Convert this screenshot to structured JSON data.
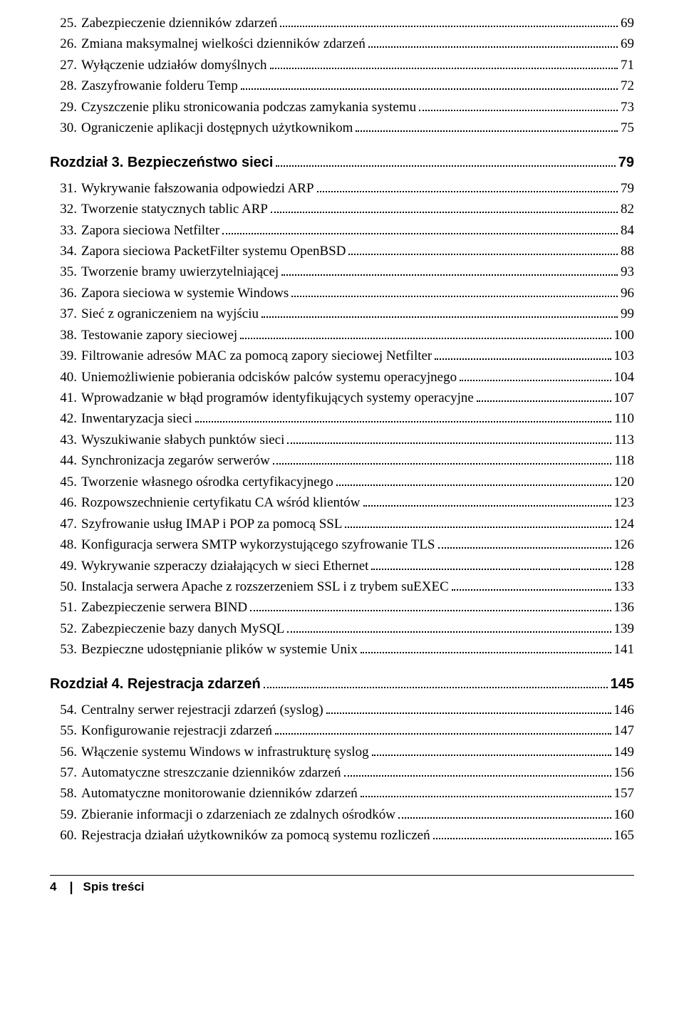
{
  "preItems": [
    {
      "num": "25",
      "title": "Zabezpieczenie dzienników zdarzeń",
      "page": "69"
    },
    {
      "num": "26",
      "title": "Zmiana maksymalnej wielkości dzienników zdarzeń",
      "page": "69"
    },
    {
      "num": "27",
      "title": "Wyłączenie udziałów domyślnych",
      "page": "71"
    },
    {
      "num": "28",
      "title": "Zaszyfrowanie folderu Temp",
      "page": "72"
    },
    {
      "num": "29",
      "title": "Czyszczenie pliku stronicowania podczas zamykania systemu",
      "page": "73"
    },
    {
      "num": "30",
      "title": "Ograniczenie aplikacji dostępnych użytkownikom",
      "page": "75"
    }
  ],
  "chapters": [
    {
      "heading": "Rozdział 3. Bezpieczeństwo sieci",
      "page": "79",
      "items": [
        {
          "num": "31",
          "title": "Wykrywanie fałszowania odpowiedzi ARP",
          "page": "79"
        },
        {
          "num": "32",
          "title": "Tworzenie statycznych tablic ARP",
          "page": "82"
        },
        {
          "num": "33",
          "title": "Zapora sieciowa Netfilter",
          "page": "84"
        },
        {
          "num": "34",
          "title": "Zapora sieciowa PacketFilter systemu OpenBSD",
          "page": "88"
        },
        {
          "num": "35",
          "title": "Tworzenie bramy uwierzytelniającej",
          "page": "93"
        },
        {
          "num": "36",
          "title": "Zapora sieciowa w systemie Windows",
          "page": "96"
        },
        {
          "num": "37",
          "title": "Sieć z ograniczeniem na wyjściu",
          "page": "99"
        },
        {
          "num": "38",
          "title": "Testowanie zapory sieciowej",
          "page": "100"
        },
        {
          "num": "39",
          "title": "Filtrowanie adresów MAC za pomocą zapory sieciowej Netfilter",
          "page": "103"
        },
        {
          "num": "40",
          "title": "Uniemożliwienie pobierania odcisków palców systemu operacyjnego",
          "page": "104"
        },
        {
          "num": "41",
          "title": "Wprowadzanie w błąd programów identyfikujących systemy operacyjne",
          "page": "107"
        },
        {
          "num": "42",
          "title": "Inwentaryzacja sieci",
          "page": "110"
        },
        {
          "num": "43",
          "title": "Wyszukiwanie słabych punktów sieci",
          "page": "113"
        },
        {
          "num": "44",
          "title": "Synchronizacja zegarów serwerów",
          "page": "118"
        },
        {
          "num": "45",
          "title": "Tworzenie własnego ośrodka certyfikacyjnego",
          "page": "120"
        },
        {
          "num": "46",
          "title": "Rozpowszechnienie certyfikatu CA wśród klientów",
          "page": "123"
        },
        {
          "num": "47",
          "title": "Szyfrowanie usług IMAP i POP za pomocą SSL",
          "page": "124"
        },
        {
          "num": "48",
          "title": "Konfiguracja serwera SMTP wykorzystującego szyfrowanie TLS",
          "page": "126"
        },
        {
          "num": "49",
          "title": "Wykrywanie szperaczy działających w sieci Ethernet",
          "page": "128"
        },
        {
          "num": "50",
          "title": "Instalacja serwera Apache z rozszerzeniem SSL i z trybem suEXEC",
          "page": "133"
        },
        {
          "num": "51",
          "title": "Zabezpieczenie serwera BIND",
          "page": "136"
        },
        {
          "num": "52",
          "title": "Zabezpieczenie bazy danych MySQL",
          "page": "139"
        },
        {
          "num": "53",
          "title": "Bezpieczne udostępnianie plików w systemie Unix",
          "page": "141"
        }
      ]
    },
    {
      "heading": "Rozdział 4. Rejestracja zdarzeń",
      "page": "145",
      "items": [
        {
          "num": "54",
          "title": "Centralny serwer rejestracji zdarzeń (syslog)",
          "page": "146"
        },
        {
          "num": "55",
          "title": "Konfigurowanie rejestracji zdarzeń",
          "page": "147"
        },
        {
          "num": "56",
          "title": "Włączenie systemu Windows w infrastrukturę syslog",
          "page": "149"
        },
        {
          "num": "57",
          "title": "Automatyczne streszczanie dzienników zdarzeń",
          "page": "156"
        },
        {
          "num": "58",
          "title": "Automatyczne monitorowanie dzienników zdarzeń",
          "page": "157"
        },
        {
          "num": "59",
          "title": "Zbieranie informacji o zdarzeniach ze zdalnych ośrodków",
          "page": "160"
        },
        {
          "num": "60",
          "title": "Rejestracja działań użytkowników za pomocą systemu rozliczeń",
          "page": "165"
        }
      ]
    }
  ],
  "footer": {
    "pageNumber": "4",
    "label": "Spis treści"
  }
}
